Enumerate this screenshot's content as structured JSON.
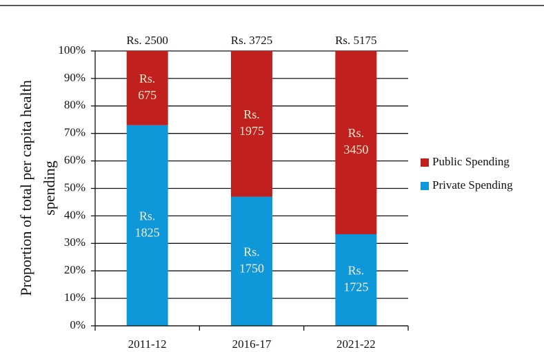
{
  "chart_data": {
    "type": "stacked_bar_percent",
    "y_label": "Proportion of total per capita health spending",
    "categories": [
      "2011-12",
      "2016-17",
      "2021-22"
    ],
    "totals": [
      2500,
      3725,
      5175
    ],
    "total_labels": [
      "Rs. 2500",
      "Rs. 3725",
      "Rs. 5175"
    ],
    "series": [
      {
        "name": "Private Spending",
        "color": "#0e97d9",
        "values": [
          1825,
          1750,
          1725
        ],
        "value_labels": [
          "Rs. 1825",
          "Rs. 1750",
          "Rs. 1725"
        ]
      },
      {
        "name": "Public Spending",
        "color": "#c0201e",
        "values": [
          675,
          1975,
          3450
        ],
        "value_labels": [
          "Rs. 675",
          "Rs. 1975",
          "Rs. 3450"
        ]
      }
    ],
    "ylim": [
      0,
      100
    ],
    "yticks": [
      {
        "value": 0,
        "label": "0%"
      },
      {
        "value": 10,
        "label": "10%"
      },
      {
        "value": 20,
        "label": "20%"
      },
      {
        "value": 30,
        "label": "30%"
      },
      {
        "value": 40,
        "label": "40%"
      },
      {
        "value": 50,
        "label": "50%"
      },
      {
        "value": 60,
        "label": "60%"
      },
      {
        "value": 70,
        "label": "70%"
      },
      {
        "value": 80,
        "label": "80%"
      },
      {
        "value": 90,
        "label": "90%"
      },
      {
        "value": 100,
        "label": "100%"
      }
    ],
    "grid": true,
    "legend": "right"
  }
}
